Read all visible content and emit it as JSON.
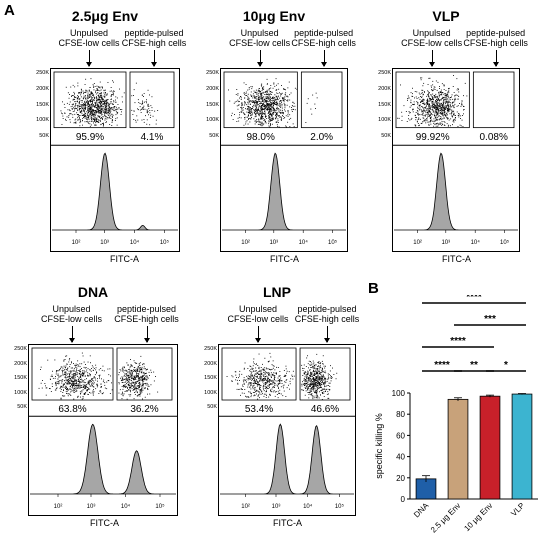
{
  "panel_a_label": "A",
  "panel_b_label": "B",
  "flow_panels": [
    {
      "title": "2.5μg Env",
      "gate_left_label": [
        "Unpulsed",
        "CFSE-low cells"
      ],
      "gate_right_label": [
        "peptide-pulsed",
        "CFSE-high cells"
      ],
      "pct_low": "95.9%",
      "pct_high": "4.1%",
      "yticks": [
        "250K",
        "200K",
        "150K",
        "100K",
        "50K"
      ],
      "xticks": [
        "10²",
        "10³",
        "10⁴",
        "10⁵"
      ],
      "xlabel": "FITC-A"
    },
    {
      "title": "10μg Env",
      "gate_left_label": [
        "Unpulsed",
        "CFSE-low cells"
      ],
      "gate_right_label": [
        "peptide-pulsed",
        "CFSE-high cells"
      ],
      "pct_low": "98.0%",
      "pct_high": "2.0%",
      "yticks": [
        "250K",
        "200K",
        "150K",
        "100K",
        "50K"
      ],
      "xticks": [
        "10²",
        "10³",
        "10⁴",
        "10⁵"
      ],
      "xlabel": "FITC-A"
    },
    {
      "title": "VLP",
      "gate_left_label": [
        "Unpulsed",
        "CFSE-low cells"
      ],
      "gate_right_label": [
        "peptide-pulsed",
        "CFSE-high cells"
      ],
      "pct_low": "99.92%",
      "pct_high": "0.08%",
      "yticks": [
        "250K",
        "200K",
        "150K",
        "100K",
        "50K"
      ],
      "xticks": [
        "10²",
        "10³",
        "10⁴",
        "10⁵"
      ],
      "xlabel": "FITC-A"
    },
    {
      "title": "DNA",
      "gate_left_label": [
        "Unpulsed",
        "CFSE-low cells"
      ],
      "gate_right_label": [
        "peptide-pulsed",
        "CFSE-high cells"
      ],
      "pct_low": "63.8%",
      "pct_high": "36.2%",
      "yticks": [
        "250K",
        "200K",
        "150K",
        "100K",
        "50K"
      ],
      "xticks": [
        "10²",
        "10³",
        "10⁴",
        "10⁵"
      ],
      "xlabel": "FITC-A"
    },
    {
      "title": "LNP",
      "gate_left_label": [
        "Unpulsed",
        "CFSE-low cells"
      ],
      "gate_right_label": [
        "peptide-pulsed",
        "CFSE-high cells"
      ],
      "pct_low": "53.4%",
      "pct_high": "46.6%",
      "yticks": [
        "250K",
        "200K",
        "150K",
        "100K",
        "50K"
      ],
      "xticks": [
        "10²",
        "10³",
        "10⁴",
        "10⁵"
      ],
      "xlabel": "FITC-A"
    }
  ],
  "chart_data": {
    "type": "bar",
    "categories": [
      "DNA",
      "2.5 μg Env",
      "10 μg Env",
      "VLP"
    ],
    "values": [
      19,
      94,
      97,
      99
    ],
    "errors": [
      3,
      1.5,
      1,
      0.5
    ],
    "colors": [
      "#1f5fa8",
      "#c8a27a",
      "#c8202a",
      "#3cb4d0"
    ],
    "ylabel": "specific killing %",
    "ylim": [
      0,
      100
    ],
    "yticks": [
      "0",
      "20",
      "40",
      "60",
      "80",
      "100"
    ],
    "significance": [
      {
        "from": 0,
        "to": 3,
        "label": "****"
      },
      {
        "from": 1,
        "to": 3,
        "label": "***"
      },
      {
        "from": 0,
        "to": 2,
        "label": "****"
      },
      {
        "from": 0,
        "to": 1,
        "label": "****"
      },
      {
        "from": 1,
        "to": 2,
        "label": "**"
      },
      {
        "from": 2,
        "to": 3,
        "label": "*"
      }
    ]
  }
}
